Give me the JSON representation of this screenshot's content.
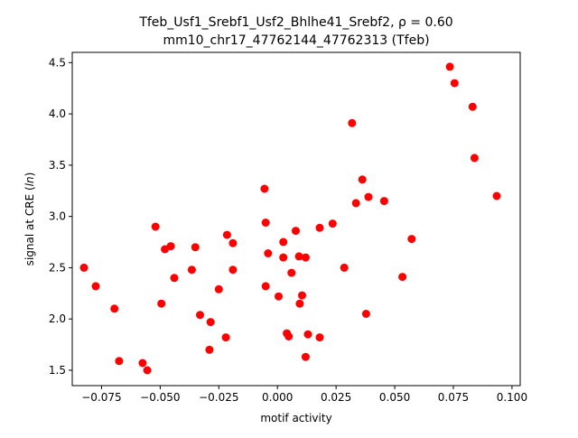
{
  "chart_data": {
    "type": "scatter",
    "title_line1": "Tfeb_Usf1_Srebf1_Usf2_Bhlhe41_Srebf2, ρ = 0.60",
    "title_line2": "mm10_chr17_47762144_47762313 (Tfeb)",
    "xlabel": "motif activity",
    "ylabel": "signal at CRE (ln)",
    "xlim": [
      -0.0875,
      0.1035
    ],
    "ylim": [
      1.35,
      4.6
    ],
    "xticks": [
      {
        "value": -0.075,
        "label": "−0.075"
      },
      {
        "value": -0.05,
        "label": "−0.050"
      },
      {
        "value": -0.025,
        "label": "−0.025"
      },
      {
        "value": 0.0,
        "label": "0.000"
      },
      {
        "value": 0.025,
        "label": "0.025"
      },
      {
        "value": 0.05,
        "label": "0.050"
      },
      {
        "value": 0.075,
        "label": "0.075"
      },
      {
        "value": 0.1,
        "label": "0.100"
      }
    ],
    "yticks": [
      {
        "value": 1.5,
        "label": "1.5"
      },
      {
        "value": 2.0,
        "label": "2.0"
      },
      {
        "value": 2.5,
        "label": "2.5"
      },
      {
        "value": 3.0,
        "label": "3.0"
      },
      {
        "value": 3.5,
        "label": "3.5"
      },
      {
        "value": 4.0,
        "label": "4.0"
      },
      {
        "value": 4.5,
        "label": "4.5"
      }
    ],
    "grid": false,
    "marker_color": "#ff0000",
    "points": [
      {
        "x": -0.0825,
        "y": 2.5
      },
      {
        "x": -0.0775,
        "y": 2.32
      },
      {
        "x": -0.0695,
        "y": 2.1
      },
      {
        "x": -0.0675,
        "y": 1.59
      },
      {
        "x": -0.0575,
        "y": 1.57
      },
      {
        "x": -0.0555,
        "y": 1.5
      },
      {
        "x": -0.052,
        "y": 2.9
      },
      {
        "x": -0.0495,
        "y": 2.15
      },
      {
        "x": -0.048,
        "y": 2.68
      },
      {
        "x": -0.0455,
        "y": 2.71
      },
      {
        "x": -0.044,
        "y": 2.4
      },
      {
        "x": -0.0365,
        "y": 2.48
      },
      {
        "x": -0.035,
        "y": 2.7
      },
      {
        "x": -0.033,
        "y": 2.04
      },
      {
        "x": -0.029,
        "y": 1.7
      },
      {
        "x": -0.0285,
        "y": 1.97
      },
      {
        "x": -0.025,
        "y": 2.29
      },
      {
        "x": -0.022,
        "y": 1.82
      },
      {
        "x": -0.0215,
        "y": 2.82
      },
      {
        "x": -0.019,
        "y": 2.74
      },
      {
        "x": -0.019,
        "y": 2.48
      },
      {
        "x": -0.0055,
        "y": 3.27
      },
      {
        "x": -0.005,
        "y": 2.94
      },
      {
        "x": -0.005,
        "y": 2.32
      },
      {
        "x": -0.004,
        "y": 2.64
      },
      {
        "x": 0.0005,
        "y": 2.22
      },
      {
        "x": 0.0025,
        "y": 2.75
      },
      {
        "x": 0.0025,
        "y": 2.6
      },
      {
        "x": 0.004,
        "y": 1.86
      },
      {
        "x": 0.0048,
        "y": 1.83
      },
      {
        "x": 0.006,
        "y": 2.45
      },
      {
        "x": 0.0078,
        "y": 2.86
      },
      {
        "x": 0.0092,
        "y": 2.61
      },
      {
        "x": 0.0095,
        "y": 2.15
      },
      {
        "x": 0.0105,
        "y": 2.23
      },
      {
        "x": 0.012,
        "y": 2.6
      },
      {
        "x": 0.012,
        "y": 1.63
      },
      {
        "x": 0.013,
        "y": 1.85
      },
      {
        "x": 0.018,
        "y": 2.89
      },
      {
        "x": 0.018,
        "y": 1.82
      },
      {
        "x": 0.0235,
        "y": 2.93
      },
      {
        "x": 0.0285,
        "y": 2.5
      },
      {
        "x": 0.0318,
        "y": 3.91
      },
      {
        "x": 0.0335,
        "y": 3.13
      },
      {
        "x": 0.0362,
        "y": 3.36
      },
      {
        "x": 0.0378,
        "y": 2.05
      },
      {
        "x": 0.0388,
        "y": 3.19
      },
      {
        "x": 0.0455,
        "y": 3.15
      },
      {
        "x": 0.0533,
        "y": 2.41
      },
      {
        "x": 0.0572,
        "y": 2.78
      },
      {
        "x": 0.0735,
        "y": 4.46
      },
      {
        "x": 0.0755,
        "y": 4.3
      },
      {
        "x": 0.0832,
        "y": 4.07
      },
      {
        "x": 0.084,
        "y": 3.57
      },
      {
        "x": 0.0935,
        "y": 3.2
      }
    ]
  }
}
